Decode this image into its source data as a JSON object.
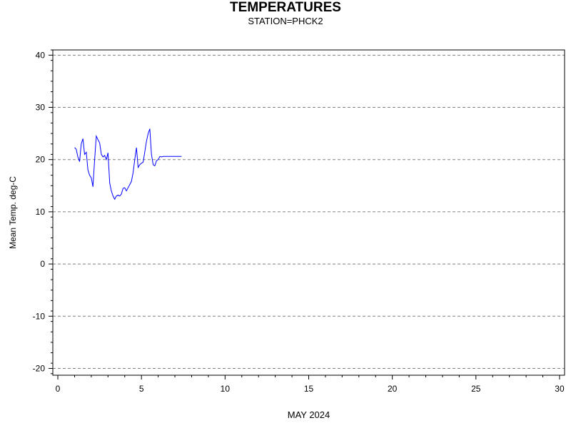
{
  "chart_data": {
    "type": "line",
    "title": "TEMPERATURES",
    "subtitle": "STATION=PHCK2",
    "xlabel": "MAY 2024",
    "ylabel": "Mean Temp. deg-C",
    "xlim": [
      -0.3,
      30.3
    ],
    "ylim": [
      -21.3,
      41
    ],
    "xticks": [
      0,
      5,
      10,
      15,
      20,
      25,
      30
    ],
    "yticks": [
      -20,
      -10,
      0,
      10,
      20,
      30,
      40
    ],
    "grid": "horizontal dashed",
    "line_color": "#0000ff",
    "series": [
      {
        "x": [
          1.0,
          1.1,
          1.2,
          1.3,
          1.4,
          1.5,
          1.6,
          1.7,
          1.8,
          1.9,
          2.0,
          2.1,
          2.2,
          2.3,
          2.4,
          2.5,
          2.6,
          2.7,
          2.8,
          2.9,
          3.0,
          3.1,
          3.2,
          3.3,
          3.4,
          3.5,
          3.6,
          3.7,
          3.8,
          3.9,
          4.0,
          4.1,
          4.2,
          4.3,
          4.4,
          4.5,
          4.6,
          4.7,
          4.8,
          4.9,
          5.0,
          5.1,
          5.2,
          5.3,
          5.4,
          5.5,
          5.6,
          5.7,
          5.8,
          5.9,
          6.0,
          6.1,
          6.2,
          6.3,
          6.4,
          6.5,
          6.6,
          6.7,
          6.8,
          6.9,
          7.0,
          7.1,
          7.2,
          7.3,
          7.4
        ],
        "y": [
          22.3,
          22.0,
          20.5,
          19.6,
          23.0,
          24.0,
          21.0,
          21.4,
          18.0,
          17.0,
          16.5,
          14.8,
          20.0,
          24.5,
          23.8,
          23.2,
          21.0,
          20.5,
          20.8,
          20.0,
          21.3,
          15.5,
          14.0,
          13.0,
          12.4,
          13.0,
          13.2,
          13.0,
          13.4,
          14.5,
          14.6,
          14.0,
          14.6,
          15.2,
          15.8,
          17.5,
          20.0,
          22.3,
          18.5,
          19.0,
          19.3,
          19.5,
          21.5,
          23.5,
          25.0,
          25.9,
          21.0,
          19.0,
          18.8,
          19.8,
          20.0,
          20.6,
          20.5,
          20.6,
          20.6,
          20.6,
          20.6,
          20.6,
          20.6,
          20.6,
          20.6,
          20.6,
          20.6,
          20.6,
          20.6
        ]
      }
    ]
  }
}
